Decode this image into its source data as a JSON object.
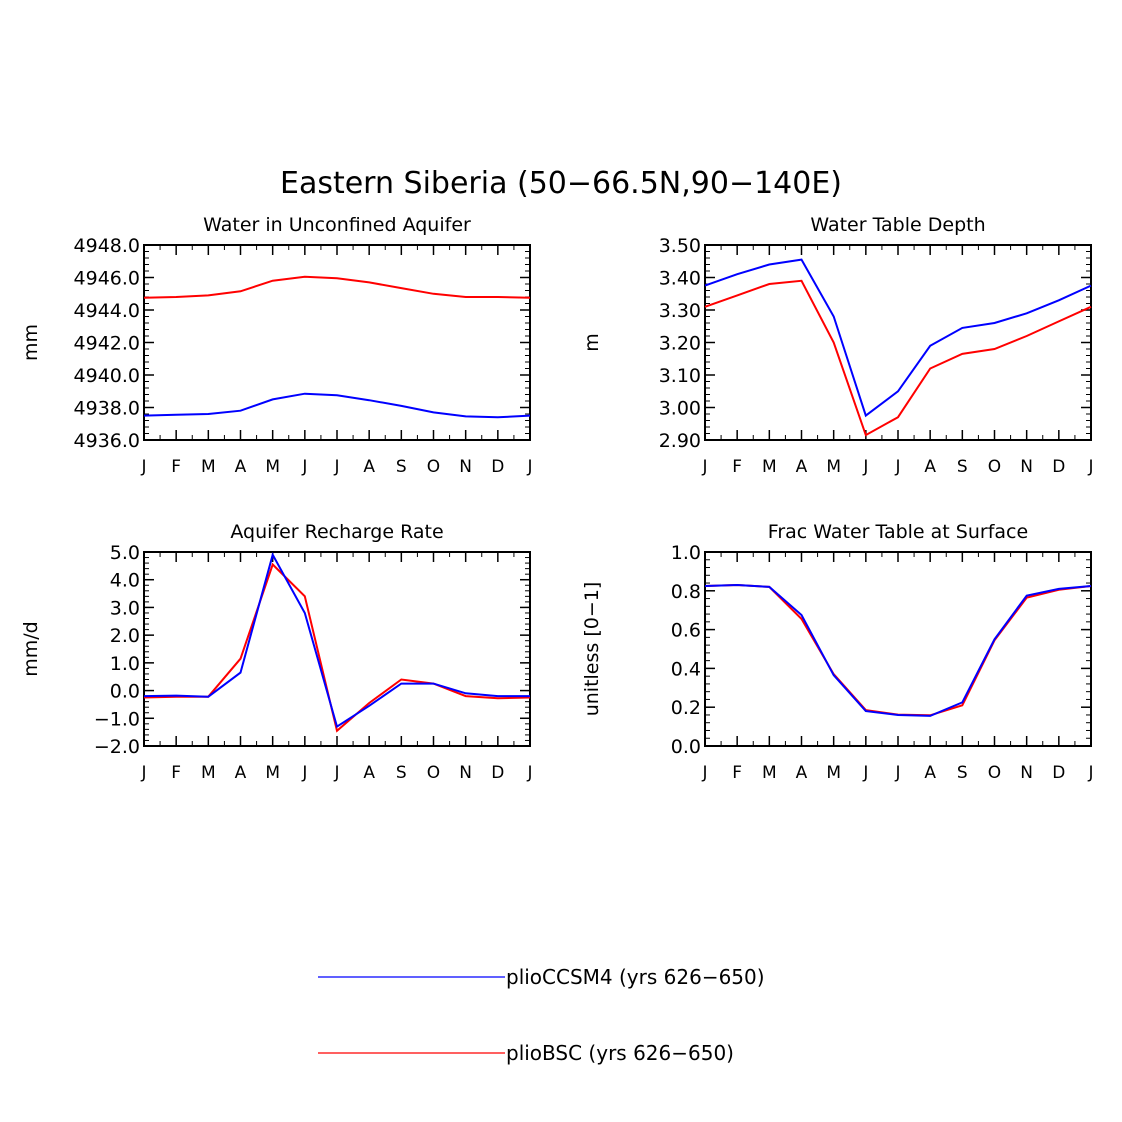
{
  "title": "Eastern Siberia (50−66.5N,90−140E)",
  "month_labels": [
    "J",
    "F",
    "M",
    "A",
    "M",
    "J",
    "J",
    "A",
    "S",
    "O",
    "N",
    "D",
    "J"
  ],
  "colors": {
    "pliocCSM4": "#0000ff",
    "plioBSC": "#ff0000",
    "axis": "#000000"
  },
  "legend": [
    {
      "key": "pliocCSM4",
      "label": "plioCCSM4 (yrs 626−650)",
      "color": "#0000ff"
    },
    {
      "key": "plioBSC",
      "label": "plioBSC (yrs 626−650)",
      "color": "#ff0000"
    }
  ],
  "chart_data": [
    {
      "type": "line",
      "title": "Water in Unconfined Aquifer",
      "ylabel": "mm",
      "xlabel": "",
      "ylim": [
        4936.0,
        4948.0
      ],
      "yticks": [
        4936.0,
        4938.0,
        4940.0,
        4942.0,
        4944.0,
        4946.0,
        4948.0
      ],
      "ytick_labels": [
        "4936.0",
        "4938.0",
        "4940.0",
        "4942.0",
        "4944.0",
        "4946.0",
        "4948.0"
      ],
      "minor_step": 0.4,
      "series": [
        {
          "name": "plioCCSM4 (yrs 626−650)",
          "key": "pliocCSM4",
          "values": [
            4937.5,
            4937.55,
            4937.6,
            4937.8,
            4938.5,
            4938.85,
            4938.75,
            4938.45,
            4938.1,
            4937.7,
            4937.45,
            4937.4,
            4937.5
          ]
        },
        {
          "name": "plioBSC (yrs 626−650)",
          "key": "plioBSC",
          "values": [
            4944.75,
            4944.8,
            4944.9,
            4945.15,
            4945.8,
            4946.05,
            4945.95,
            4945.7,
            4945.35,
            4945.0,
            4944.8,
            4944.8,
            4944.75
          ]
        }
      ]
    },
    {
      "type": "line",
      "title": "Water Table Depth",
      "ylabel": "m",
      "xlabel": "",
      "ylim": [
        2.9,
        3.5
      ],
      "yticks": [
        2.9,
        3.0,
        3.1,
        3.2,
        3.3,
        3.4,
        3.5
      ],
      "ytick_labels": [
        "2.90",
        "3.00",
        "3.10",
        "3.20",
        "3.30",
        "3.40",
        "3.50"
      ],
      "minor_step": 0.02,
      "series": [
        {
          "name": "plioCCSM4 (yrs 626−650)",
          "key": "pliocCSM4",
          "values": [
            3.375,
            3.41,
            3.44,
            3.455,
            3.28,
            2.975,
            3.05,
            3.19,
            3.245,
            3.26,
            3.29,
            3.33,
            3.375
          ]
        },
        {
          "name": "plioBSC (yrs 626−650)",
          "key": "plioBSC",
          "values": [
            3.31,
            3.345,
            3.38,
            3.39,
            3.2,
            2.915,
            2.97,
            3.12,
            3.165,
            3.18,
            3.22,
            3.265,
            3.31
          ]
        }
      ]
    },
    {
      "type": "line",
      "title": "Aquifer Recharge Rate",
      "ylabel": "mm/d",
      "xlabel": "",
      "ylim": [
        -2.0,
        5.0
      ],
      "yticks": [
        -2.0,
        -1.0,
        0.0,
        1.0,
        2.0,
        3.0,
        4.0,
        5.0
      ],
      "ytick_labels": [
        "−2.0",
        "−1.0",
        "0.0",
        "1.0",
        "2.0",
        "3.0",
        "4.0",
        "5.0"
      ],
      "minor_step": 0.2,
      "series": [
        {
          "name": "plioCCSM4 (yrs 626−650)",
          "key": "pliocCSM4",
          "values": [
            -0.2,
            -0.18,
            -0.22,
            0.65,
            4.9,
            2.8,
            -1.3,
            -0.55,
            0.25,
            0.25,
            -0.1,
            -0.2,
            -0.2
          ]
        },
        {
          "name": "plioBSC (yrs 626−650)",
          "key": "plioBSC",
          "values": [
            -0.25,
            -0.22,
            -0.22,
            1.15,
            4.55,
            3.4,
            -1.45,
            -0.45,
            0.4,
            0.25,
            -0.2,
            -0.28,
            -0.25
          ]
        }
      ]
    },
    {
      "type": "line",
      "title": "Frac Water Table at Surface",
      "ylabel": "unitless [0−1]",
      "xlabel": "",
      "ylim": [
        0.0,
        1.0
      ],
      "yticks": [
        0.0,
        0.2,
        0.4,
        0.6,
        0.8,
        1.0
      ],
      "ytick_labels": [
        "0.0",
        "0.2",
        "0.4",
        "0.6",
        "0.8",
        "1.0"
      ],
      "minor_step": 0.04,
      "series": [
        {
          "name": "plioCCSM4 (yrs 626−650)",
          "key": "pliocCSM4",
          "values": [
            0.825,
            0.83,
            0.82,
            0.675,
            0.365,
            0.18,
            0.16,
            0.155,
            0.225,
            0.55,
            0.775,
            0.81,
            0.825
          ]
        },
        {
          "name": "plioBSC (yrs 626−650)",
          "key": "plioBSC",
          "values": [
            0.825,
            0.83,
            0.82,
            0.655,
            0.37,
            0.185,
            0.162,
            0.158,
            0.21,
            0.545,
            0.765,
            0.805,
            0.825
          ]
        }
      ]
    }
  ]
}
